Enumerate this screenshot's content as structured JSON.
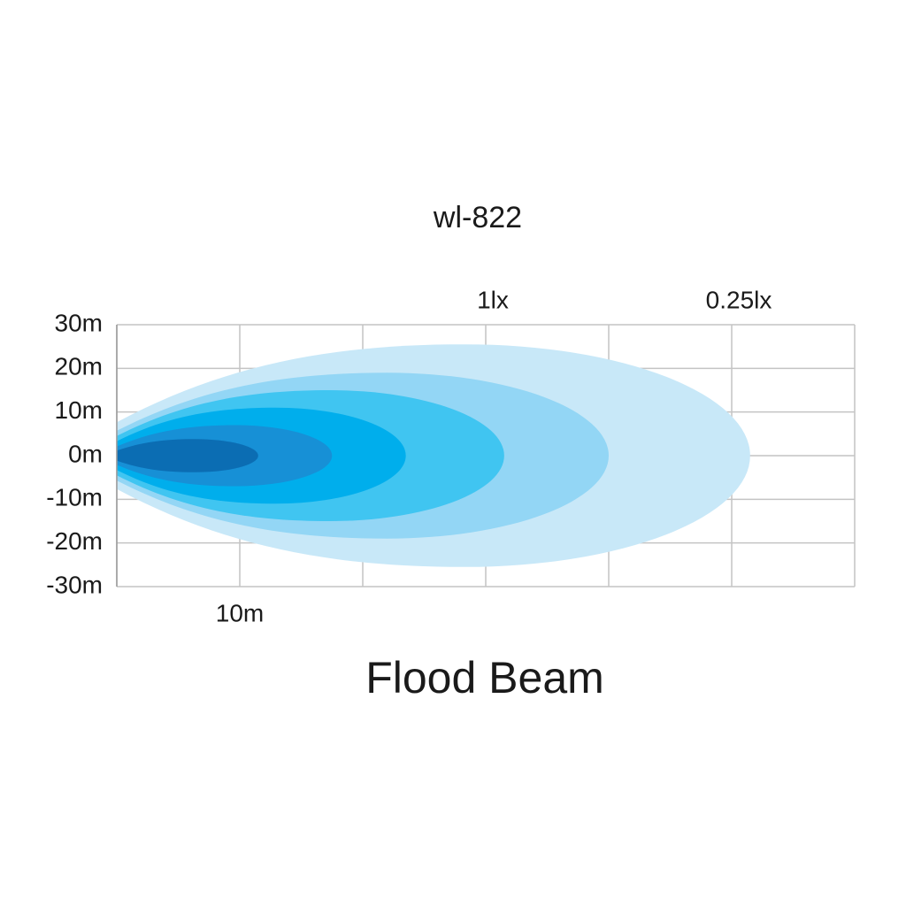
{
  "chart_data": {
    "type": "beam",
    "title": "wl-822",
    "x_label": "Flood Beam",
    "xlim": [
      0,
      60
    ],
    "ylim": [
      -30,
      30
    ],
    "xgrid": [
      0,
      10,
      20,
      30,
      40,
      50,
      60
    ],
    "xticks": [
      {
        "value": 10,
        "label": "10m"
      }
    ],
    "yticks": [
      {
        "value": 30,
        "label": "30m"
      },
      {
        "value": 20,
        "label": "20m"
      },
      {
        "value": 10,
        "label": "10m"
      },
      {
        "value": 0,
        "label": "0m"
      },
      {
        "value": -10,
        "label": "-10m"
      },
      {
        "value": -20,
        "label": "-20m"
      },
      {
        "value": -30,
        "label": "-30m"
      }
    ],
    "annotations": [
      {
        "x": 30,
        "text": "1lx"
      },
      {
        "x": 50,
        "text": "0.25lx"
      }
    ],
    "grid": true,
    "series": [
      {
        "color": "#c8e8f8",
        "reach": 51.5,
        "half_width": 25.5
      },
      {
        "color": "#93d6f5",
        "reach": 40,
        "half_width": 19
      },
      {
        "color": "#40c5f1",
        "reach": 31.5,
        "half_width": 15
      },
      {
        "color": "#00aeec",
        "reach": 23.5,
        "half_width": 11
      },
      {
        "color": "#1790d6",
        "reach": 17.5,
        "half_width": 7
      },
      {
        "color": "#0b6db3",
        "reach": 11.5,
        "half_width": 3.8
      }
    ]
  }
}
